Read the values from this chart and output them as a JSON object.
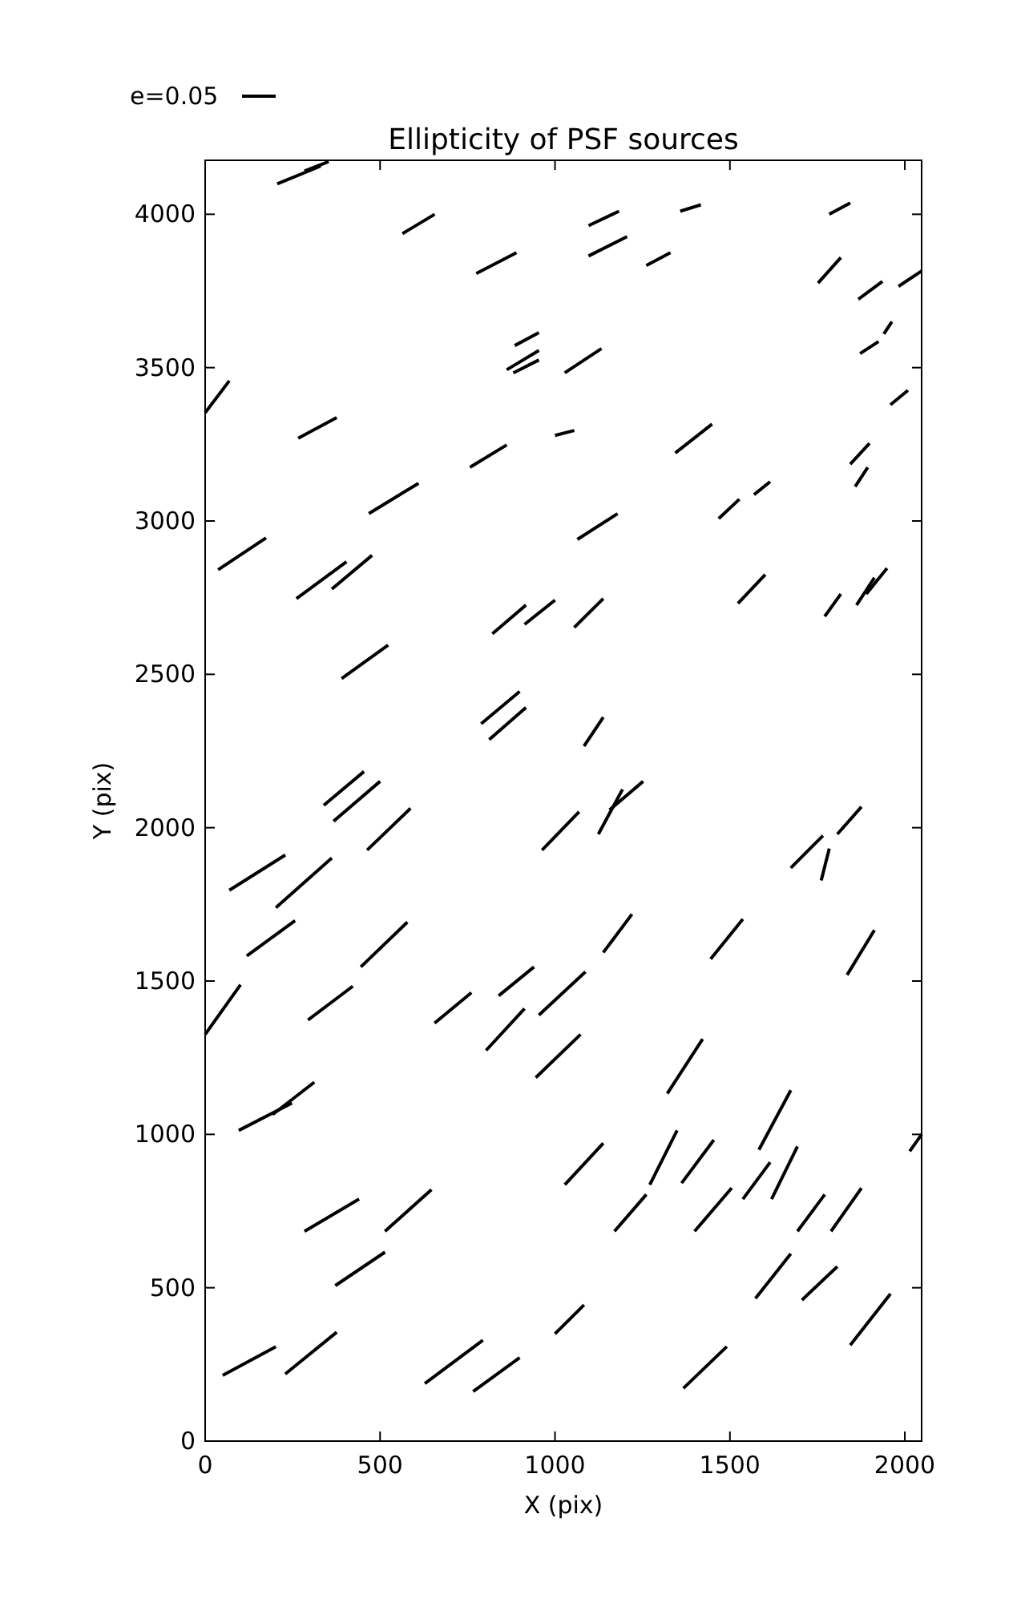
{
  "chart_data": {
    "type": "line",
    "title": "Ellipticity of PSF sources",
    "xlabel": "X (pix)",
    "ylabel": "Y (pix)",
    "annotations": [
      "e=0.05"
    ],
    "xlim": [
      0,
      2048
    ],
    "ylim": [
      0,
      4176
    ],
    "xticks": [
      0,
      500,
      1000,
      1500,
      2000
    ],
    "yticks": [
      0,
      500,
      1000,
      1500,
      2000,
      2500,
      3000,
      3500,
      4000
    ],
    "grid": false,
    "line_style": "solid",
    "series": [
      {
        "color": "#000000",
        "x": [
          206,
          330
        ],
        "values": [
          4099,
          4157
        ]
      },
      {
        "color": "#000000",
        "x": [
          284,
          353
        ],
        "values": [
          4141,
          4172
        ]
      },
      {
        "color": "#000000",
        "x": [
          564,
          656
        ],
        "values": [
          3937,
          4000
        ]
      },
      {
        "color": "#000000",
        "x": [
          775,
          890
        ],
        "values": [
          3807,
          3875
        ]
      },
      {
        "color": "#000000",
        "x": [
          1096,
          1206
        ],
        "values": [
          3864,
          3927
        ]
      },
      {
        "color": "#000000",
        "x": [
          1358,
          1417
        ],
        "values": [
          4010,
          4031
        ]
      },
      {
        "color": "#000000",
        "x": [
          1096,
          1183
        ],
        "values": [
          3963,
          4010
        ]
      },
      {
        "color": "#000000",
        "x": [
          1784,
          1844
        ],
        "values": [
          4000,
          4037
        ]
      },
      {
        "color": "#000000",
        "x": [
          1261,
          1330
        ],
        "values": [
          3833,
          3875
        ]
      },
      {
        "color": "#000000",
        "x": [
          1752,
          1817
        ],
        "values": [
          3776,
          3859
        ]
      },
      {
        "color": "#000000",
        "x": [
          1867,
          1936
        ],
        "values": [
          3723,
          3781
        ]
      },
      {
        "color": "#000000",
        "x": [
          1982,
          2048
        ],
        "values": [
          3765,
          3815
        ]
      },
      {
        "color": "#000000",
        "x": [
          0,
          69
        ],
        "values": [
          3353,
          3457
        ]
      },
      {
        "color": "#000000",
        "x": [
          266,
          376
        ],
        "values": [
          3270,
          3337
        ]
      },
      {
        "color": "#000000",
        "x": [
          881,
          954
        ],
        "values": [
          3483,
          3525
        ]
      },
      {
        "color": "#000000",
        "x": [
          885,
          954
        ],
        "values": [
          3572,
          3614
        ]
      },
      {
        "color": "#000000",
        "x": [
          862,
          954
        ],
        "values": [
          3493,
          3556
        ]
      },
      {
        "color": "#000000",
        "x": [
          1028,
          1133
        ],
        "values": [
          3483,
          3562
        ]
      },
      {
        "color": "#000000",
        "x": [
          1872,
          1925
        ],
        "values": [
          3546,
          3585
        ]
      },
      {
        "color": "#000000",
        "x": [
          1940,
          1963
        ],
        "values": [
          3610,
          3650
        ]
      },
      {
        "color": "#000000",
        "x": [
          1959,
          2009
        ],
        "values": [
          3379,
          3426
        ]
      },
      {
        "color": "#000000",
        "x": [
          468,
          610
        ],
        "values": [
          3024,
          3123
        ]
      },
      {
        "color": "#000000",
        "x": [
          757,
          862
        ],
        "values": [
          3175,
          3248
        ]
      },
      {
        "color": "#000000",
        "x": [
          1000,
          1055
        ],
        "values": [
          3279,
          3295
        ]
      },
      {
        "color": "#000000",
        "x": [
          1064,
          1179
        ],
        "values": [
          2940,
          3024
        ]
      },
      {
        "color": "#000000",
        "x": [
          1344,
          1449
        ],
        "values": [
          3222,
          3316
        ]
      },
      {
        "color": "#000000",
        "x": [
          1468,
          1527
        ],
        "values": [
          3008,
          3071
        ]
      },
      {
        "color": "#000000",
        "x": [
          1569,
          1615
        ],
        "values": [
          3086,
          3128
        ]
      },
      {
        "color": "#000000",
        "x": [
          1844,
          1899
        ],
        "values": [
          3185,
          3253
        ]
      },
      {
        "color": "#000000",
        "x": [
          1858,
          1894
        ],
        "values": [
          3112,
          3175
        ]
      },
      {
        "color": "#000000",
        "x": [
          37,
          174
        ],
        "values": [
          2841,
          2945
        ]
      },
      {
        "color": "#000000",
        "x": [
          261,
          404
        ],
        "values": [
          2747,
          2867
        ]
      },
      {
        "color": "#000000",
        "x": [
          362,
          477
        ],
        "values": [
          2778,
          2888
        ]
      },
      {
        "color": "#000000",
        "x": [
          390,
          523
        ],
        "values": [
          2486,
          2595
        ]
      },
      {
        "color": "#000000",
        "x": [
          821,
          917
        ],
        "values": [
          2632,
          2726
        ]
      },
      {
        "color": "#000000",
        "x": [
          913,
          1000
        ],
        "values": [
          2663,
          2742
        ]
      },
      {
        "color": "#000000",
        "x": [
          1055,
          1138
        ],
        "values": [
          2653,
          2747
        ]
      },
      {
        "color": "#000000",
        "x": [
          1523,
          1601
        ],
        "values": [
          2731,
          2825
        ]
      },
      {
        "color": "#000000",
        "x": [
          1771,
          1817
        ],
        "values": [
          2689,
          2762
        ]
      },
      {
        "color": "#000000",
        "x": [
          1862,
          1913
        ],
        "values": [
          2726,
          2815
        ]
      },
      {
        "color": "#000000",
        "x": [
          1890,
          1949
        ],
        "values": [
          2762,
          2846
        ]
      },
      {
        "color": "#000000",
        "x": [
          789,
          899
        ],
        "values": [
          2339,
          2444
        ]
      },
      {
        "color": "#000000",
        "x": [
          812,
          917
        ],
        "values": [
          2287,
          2392
        ]
      },
      {
        "color": "#000000",
        "x": [
          1083,
          1138
        ],
        "values": [
          2266,
          2360
        ]
      },
      {
        "color": "#000000",
        "x": [
          339,
          454
        ],
        "values": [
          2073,
          2183
        ]
      },
      {
        "color": "#000000",
        "x": [
          367,
          500
        ],
        "values": [
          2021,
          2151
        ]
      },
      {
        "color": "#000000",
        "x": [
          463,
          587
        ],
        "values": [
          1927,
          2063
        ]
      },
      {
        "color": "#000000",
        "x": [
          963,
          1069
        ],
        "values": [
          1927,
          2052
        ]
      },
      {
        "color": "#000000",
        "x": [
          1124,
          1193
        ],
        "values": [
          1979,
          2125
        ]
      },
      {
        "color": "#000000",
        "x": [
          1156,
          1252
        ],
        "values": [
          2058,
          2151
        ]
      },
      {
        "color": "#000000",
        "x": [
          69,
          229
        ],
        "values": [
          1796,
          1911
        ]
      },
      {
        "color": "#000000",
        "x": [
          202,
          362
        ],
        "values": [
          1739,
          1901
        ]
      },
      {
        "color": "#000000",
        "x": [
          119,
          257
        ],
        "values": [
          1582,
          1697
        ]
      },
      {
        "color": "#000000",
        "x": [
          1674,
          1766
        ],
        "values": [
          1869,
          1974
        ]
      },
      {
        "color": "#000000",
        "x": [
          1761,
          1784
        ],
        "values": [
          1828,
          1932
        ]
      },
      {
        "color": "#000000",
        "x": [
          1807,
          1876
        ],
        "values": [
          1979,
          2068
        ]
      },
      {
        "color": "#000000",
        "x": [
          0,
          101
        ],
        "values": [
          1326,
          1488
        ]
      },
      {
        "color": "#000000",
        "x": [
          294,
          422
        ],
        "values": [
          1373,
          1483
        ]
      },
      {
        "color": "#000000",
        "x": [
          445,
          578
        ],
        "values": [
          1546,
          1692
        ]
      },
      {
        "color": "#000000",
        "x": [
          656,
          761
        ],
        "values": [
          1363,
          1462
        ]
      },
      {
        "color": "#000000",
        "x": [
          839,
          940
        ],
        "values": [
          1452,
          1546
        ]
      },
      {
        "color": "#000000",
        "x": [
          954,
          1087
        ],
        "values": [
          1389,
          1530
        ]
      },
      {
        "color": "#000000",
        "x": [
          1138,
          1220
        ],
        "values": [
          1593,
          1718
        ]
      },
      {
        "color": "#000000",
        "x": [
          1445,
          1537
        ],
        "values": [
          1572,
          1702
        ]
      },
      {
        "color": "#000000",
        "x": [
          1835,
          1913
        ],
        "values": [
          1520,
          1666
        ]
      },
      {
        "color": "#000000",
        "x": [
          803,
          913
        ],
        "values": [
          1274,
          1410
        ]
      },
      {
        "color": "#000000",
        "x": [
          945,
          1073
        ],
        "values": [
          1185,
          1326
        ]
      },
      {
        "color": "#000000",
        "x": [
          96,
          248
        ],
        "values": [
          1013,
          1102
        ]
      },
      {
        "color": "#000000",
        "x": [
          193,
          312
        ],
        "values": [
          1065,
          1170
        ]
      },
      {
        "color": "#000000",
        "x": [
          1321,
          1422
        ],
        "values": [
          1133,
          1311
        ]
      },
      {
        "color": "#000000",
        "x": [
          1583,
          1674
        ],
        "values": [
          950,
          1144
        ]
      },
      {
        "color": "#000000",
        "x": [
          1271,
          1349
        ],
        "values": [
          836,
          1013
        ]
      },
      {
        "color": "#000000",
        "x": [
          1362,
          1454
        ],
        "values": [
          841,
          982
        ]
      },
      {
        "color": "#000000",
        "x": [
          1028,
          1138
        ],
        "values": [
          836,
          971
        ]
      },
      {
        "color": "#000000",
        "x": [
          1537,
          1615
        ],
        "values": [
          789,
          909
        ]
      },
      {
        "color": "#000000",
        "x": [
          1619,
          1693
        ],
        "values": [
          789,
          961
        ]
      },
      {
        "color": "#000000",
        "x": [
          284,
          440
        ],
        "values": [
          684,
          789
        ]
      },
      {
        "color": "#000000",
        "x": [
          514,
          647
        ],
        "values": [
          684,
          820
        ]
      },
      {
        "color": "#000000",
        "x": [
          372,
          514
        ],
        "values": [
          507,
          616
        ]
      },
      {
        "color": "#000000",
        "x": [
          1170,
          1261
        ],
        "values": [
          684,
          804
        ]
      },
      {
        "color": "#000000",
        "x": [
          1399,
          1505
        ],
        "values": [
          684,
          825
        ]
      },
      {
        "color": "#000000",
        "x": [
          1693,
          1771
        ],
        "values": [
          684,
          804
        ]
      },
      {
        "color": "#000000",
        "x": [
          1789,
          1876
        ],
        "values": [
          684,
          825
        ]
      },
      {
        "color": "#000000",
        "x": [
          50,
          202
        ],
        "values": [
          214,
          308
        ]
      },
      {
        "color": "#000000",
        "x": [
          229,
          376
        ],
        "values": [
          219,
          355
        ]
      },
      {
        "color": "#000000",
        "x": [
          628,
          794
        ],
        "values": [
          188,
          329
        ]
      },
      {
        "color": "#000000",
        "x": [
          766,
          899
        ],
        "values": [
          162,
          272
        ]
      },
      {
        "color": "#000000",
        "x": [
          1000,
          1083
        ],
        "values": [
          350,
          444
        ]
      },
      {
        "color": "#000000",
        "x": [
          1367,
          1491
        ],
        "values": [
          172,
          308
        ]
      },
      {
        "color": "#000000",
        "x": [
          1573,
          1674
        ],
        "values": [
          465,
          611
        ]
      },
      {
        "color": "#000000",
        "x": [
          1706,
          1807
        ],
        "values": [
          460,
          569
        ]
      },
      {
        "color": "#000000",
        "x": [
          1844,
          1959
        ],
        "values": [
          313,
          480
        ]
      },
      {
        "color": "#000000",
        "x": [
          2014,
          2048
        ],
        "values": [
          945,
          1000
        ]
      }
    ]
  }
}
